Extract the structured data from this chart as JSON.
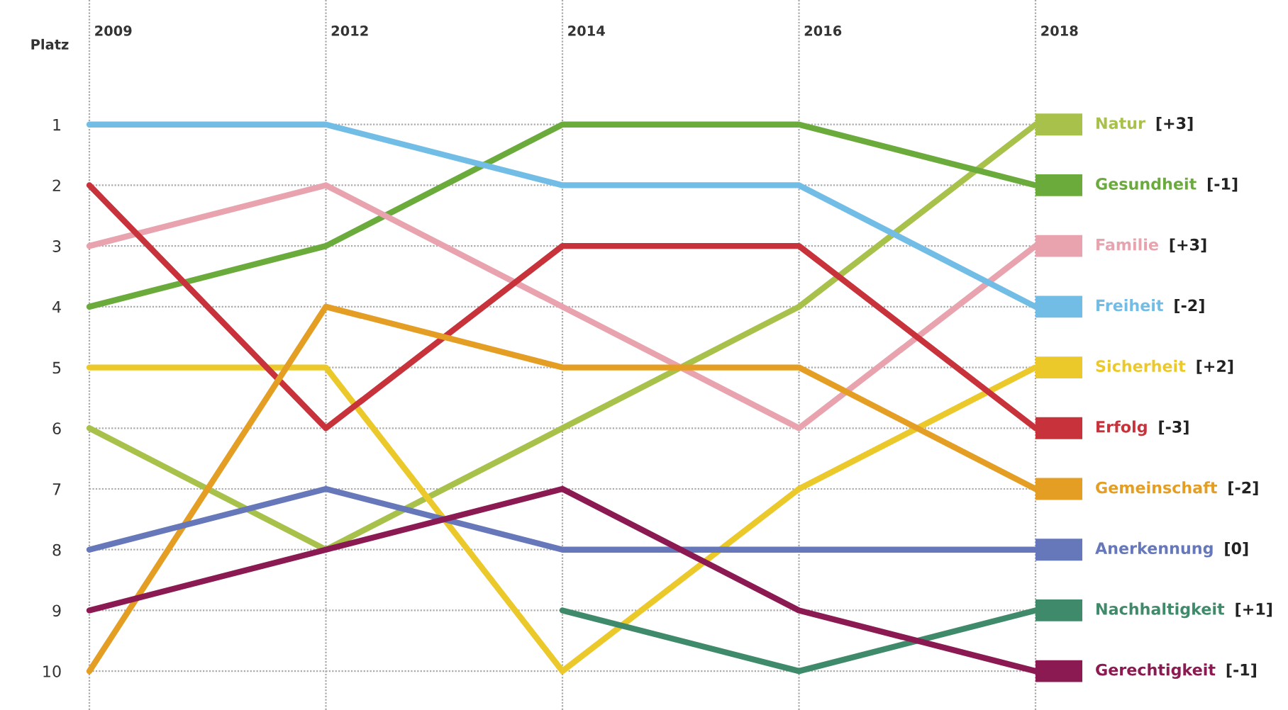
{
  "chart_data": {
    "type": "line",
    "ylabel": "Platz",
    "categories": [
      "2009",
      "2012",
      "2014",
      "2016",
      "2018"
    ],
    "ylim": [
      10.64,
      -1.05
    ],
    "yticks": [
      1,
      2,
      3,
      4,
      5,
      6,
      7,
      8,
      9,
      10
    ],
    "grid": true,
    "marker": "none",
    "line_style": "solid",
    "series": [
      {
        "name": "Natur",
        "color": "#a8c14a",
        "values": [
          6,
          8,
          6,
          4,
          1
        ]
      },
      {
        "name": "Gesundheit",
        "color": "#6aab3c",
        "values": [
          4,
          3,
          1,
          1,
          2
        ]
      },
      {
        "name": "Familie",
        "color": "#e8a3ae",
        "values": [
          3,
          2,
          4,
          6,
          3
        ]
      },
      {
        "name": "Freiheit",
        "color": "#72bde6",
        "values": [
          1,
          1,
          2,
          2,
          4
        ]
      },
      {
        "name": "Sicherheit",
        "color": "#ecc92b",
        "values": [
          5,
          5,
          10,
          7,
          5
        ]
      },
      {
        "name": "Erfolg",
        "color": "#c8323a",
        "values": [
          2,
          6,
          3,
          3,
          6
        ]
      },
      {
        "name": "Gemeinschaft",
        "color": "#e49e23",
        "values": [
          10,
          4,
          5,
          5,
          7
        ]
      },
      {
        "name": "Anerkennung",
        "color": "#6678ba",
        "values": [
          8,
          7,
          8,
          8,
          8
        ]
      },
      {
        "name": "Nachhaltigkeit",
        "color": "#3f8a6a",
        "values": [
          null,
          null,
          9,
          10,
          9
        ]
      },
      {
        "name": "Gerechtigkeit",
        "color": "#8c1a52",
        "values": [
          9,
          8,
          7,
          9,
          10
        ]
      }
    ],
    "annotations": [
      "[+3]",
      "[-1]",
      "[+3]",
      "[-2]",
      "[+2]",
      "[-3]",
      "[-2]",
      "[0]",
      "[+1]",
      "[-1]"
    ]
  }
}
